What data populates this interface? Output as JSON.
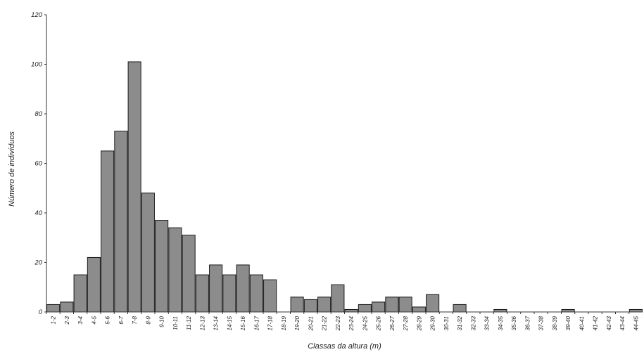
{
  "chart_data": {
    "type": "bar",
    "xlabel": "Classas da altura (m)",
    "ylabel": "Número de indivíduos",
    "ylim": [
      0,
      120
    ],
    "yticks": [
      0,
      20,
      40,
      60,
      80,
      100,
      120
    ],
    "grid": false,
    "categories": [
      "1-2",
      "2-3",
      "3-4",
      "4-5",
      "5-6",
      "6-7",
      "7-8",
      "8-9",
      "9-10",
      "10-11",
      "11-12",
      "12-13",
      "13-14",
      "14-15",
      "15-16",
      "16-17",
      "17-18",
      "18-19",
      "19-20",
      "20-21",
      "21-22",
      "22-23",
      "23-24",
      "24-25",
      "25-26",
      "26-27",
      "27-28",
      "28-29",
      "29-30",
      "30-31",
      "31-32",
      "32-33",
      "33-34",
      "34-35",
      "35-36",
      "36-37",
      "37-38",
      "38-39",
      "39-40",
      "40-41",
      "41-42",
      "42-43",
      "43-44",
      "44-45"
    ],
    "values": [
      3,
      4,
      15,
      22,
      65,
      73,
      101,
      48,
      37,
      34,
      31,
      15,
      19,
      15,
      19,
      15,
      13,
      0,
      6,
      5,
      6,
      11,
      1,
      3,
      4,
      6,
      6,
      2,
      7,
      0,
      3,
      0,
      0,
      1,
      0,
      0,
      0,
      0,
      1,
      0,
      0,
      0,
      0,
      1
    ]
  }
}
